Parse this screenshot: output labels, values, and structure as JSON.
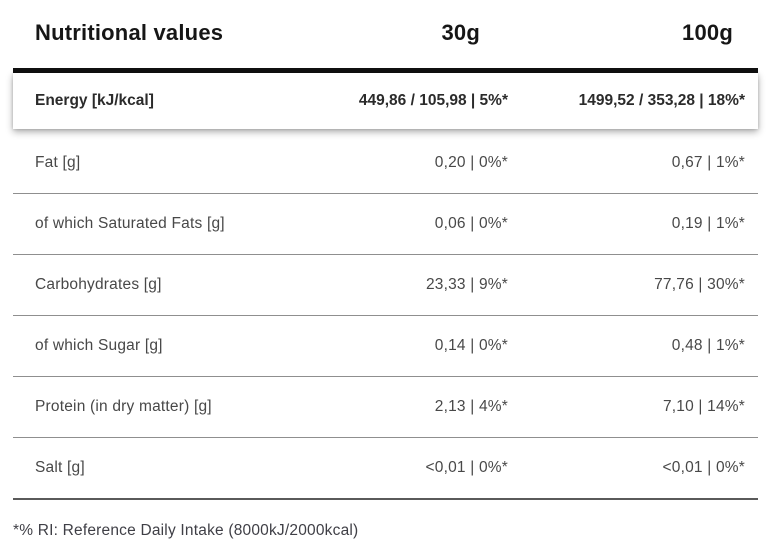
{
  "chart_data": {
    "type": "table",
    "title": "Nutritional values",
    "columns": [
      "Nutritional values",
      "30g",
      "100g"
    ],
    "rows": [
      [
        "Energy [kJ/kcal]",
        "449,86 / 105,98 | 5%*",
        "1499,52 / 353,28 | 18%*"
      ],
      [
        "Fat [g]",
        "0,20 | 0%*",
        "0,67 | 1%*"
      ],
      [
        "of which Saturated Fats [g]",
        "0,06 | 0%*",
        "0,19 | 1%*"
      ],
      [
        "Carbohydrates [g]",
        "23,33 | 9%*",
        "77,76 | 30%*"
      ],
      [
        "of which Sugar [g]",
        "0,14 | 0%*",
        "0,48 | 1%*"
      ],
      [
        "Protein (in dry matter) [g]",
        "2,13 | 4%*",
        "7,10 | 14%*"
      ],
      [
        "Salt [g]",
        "<0,01 | 0%*",
        "<0,01 | 0%*"
      ]
    ],
    "highlighted_row": "Energy [kJ/kcal]",
    "footnote": "*% RI: Reference Daily Intake (8000kJ/2000kcal)",
    "layout_hints": {
      "value_alignment": "right",
      "label_alignment": "left",
      "highlight_style": "elevated-card-with-shadow"
    }
  },
  "colors": {
    "header_text": "#161616",
    "body_text": "#484848",
    "top_bar": "#111111",
    "row_divider": "#8f8f8f",
    "bottom_border": "#5a5a5a",
    "background": "#ffffff"
  }
}
